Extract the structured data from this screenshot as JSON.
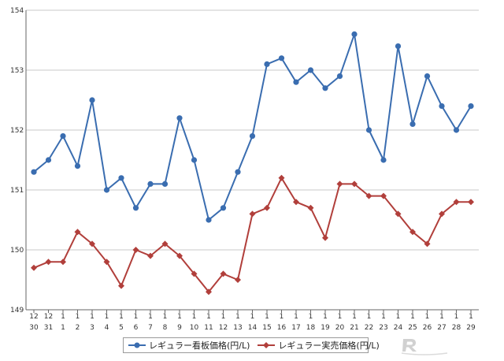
{
  "chart_data": {
    "type": "line",
    "categories": [
      [
        "12",
        "30"
      ],
      [
        "12",
        "31"
      ],
      [
        "1",
        "1"
      ],
      [
        "1",
        "2"
      ],
      [
        "1",
        "3"
      ],
      [
        "1",
        "4"
      ],
      [
        "1",
        "5"
      ],
      [
        "1",
        "6"
      ],
      [
        "1",
        "7"
      ],
      [
        "1",
        "8"
      ],
      [
        "1",
        "9"
      ],
      [
        "1",
        "10"
      ],
      [
        "1",
        "11"
      ],
      [
        "1",
        "12"
      ],
      [
        "1",
        "13"
      ],
      [
        "1",
        "14"
      ],
      [
        "1",
        "15"
      ],
      [
        "1",
        "16"
      ],
      [
        "1",
        "17"
      ],
      [
        "1",
        "18"
      ],
      [
        "1",
        "19"
      ],
      [
        "1",
        "20"
      ],
      [
        "1",
        "21"
      ],
      [
        "1",
        "22"
      ],
      [
        "1",
        "23"
      ],
      [
        "1",
        "24"
      ],
      [
        "1",
        "25"
      ],
      [
        "1",
        "26"
      ],
      [
        "1",
        "27"
      ],
      [
        "1",
        "28"
      ],
      [
        "1",
        "29"
      ]
    ],
    "series": [
      {
        "name": "レギュラー看板価格(円/L)",
        "color": "#3a6db0",
        "marker": "circle",
        "values": [
          151.3,
          151.5,
          151.9,
          151.4,
          152.5,
          151.0,
          151.2,
          150.7,
          151.1,
          151.1,
          152.2,
          151.5,
          150.5,
          150.7,
          151.3,
          151.9,
          153.1,
          153.2,
          152.8,
          153.0,
          152.7,
          152.9,
          153.6,
          152.0,
          151.5,
          153.4,
          152.1,
          152.9,
          152.4,
          152.0,
          152.4
        ]
      },
      {
        "name": "レギュラー実売価格(円/L)",
        "color": "#b13f3b",
        "marker": "diamond",
        "values": [
          149.7,
          149.8,
          149.8,
          150.3,
          150.1,
          149.8,
          149.4,
          150.0,
          149.9,
          150.1,
          149.9,
          149.6,
          149.3,
          149.6,
          149.5,
          150.6,
          150.7,
          151.2,
          150.8,
          150.7,
          150.2,
          151.1,
          151.1,
          150.9,
          150.9,
          150.6,
          150.3,
          150.1,
          150.6,
          150.8,
          150.8
        ]
      }
    ],
    "yticks": [
      "149",
      "150",
      "151",
      "152",
      "153",
      "154"
    ],
    "ylim": [
      149,
      154
    ],
    "grid": true,
    "legend_position": "bottom"
  }
}
